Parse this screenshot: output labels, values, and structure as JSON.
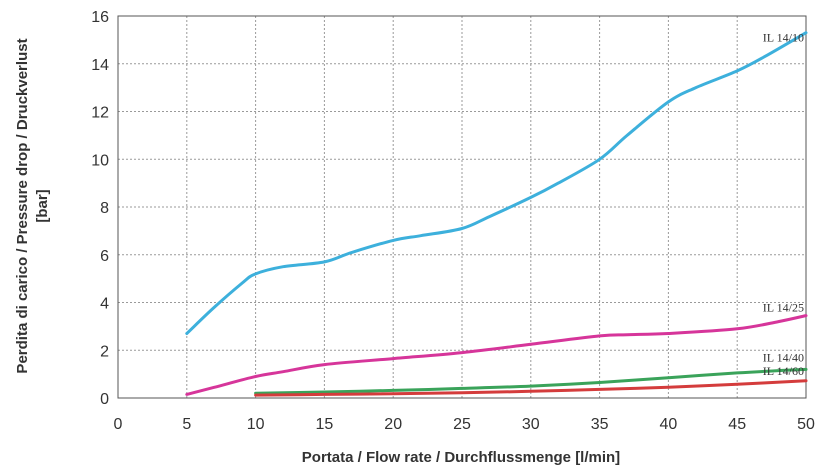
{
  "chart_data": {
    "type": "line",
    "title": "",
    "xlabel": "Portata / Flow rate /  Durchflussmenge [l/min]",
    "ylabel_line1": "Perdita di carico / Pressure drop / Druckverlust",
    "ylabel_line2": "[bar]",
    "xlim": [
      0,
      50
    ],
    "ylim": [
      0,
      16
    ],
    "x_ticks": [
      "0",
      "5",
      "10",
      "15",
      "20",
      "25",
      "30",
      "35",
      "40",
      "45",
      "50"
    ],
    "y_ticks": [
      "0",
      "2",
      "4",
      "6",
      "8",
      "10",
      "12",
      "14",
      "16"
    ],
    "grid": true,
    "series": [
      {
        "name": "IL 14/10",
        "color": "#3db0dc",
        "x": [
          5,
          7,
          9,
          10,
          12,
          15,
          17,
          20,
          22,
          25,
          27,
          30,
          32,
          35,
          37,
          40,
          42,
          45,
          47,
          50
        ],
        "y": [
          2.7,
          3.8,
          4.8,
          5.2,
          5.5,
          5.7,
          6.1,
          6.6,
          6.8,
          7.1,
          7.6,
          8.4,
          9.0,
          10.0,
          11.0,
          12.4,
          13.0,
          13.7,
          14.3,
          15.3
        ]
      },
      {
        "name": "IL 14/25",
        "color": "#d6359a",
        "x": [
          5,
          7,
          10,
          12,
          15,
          20,
          25,
          30,
          35,
          37,
          40,
          45,
          48,
          50
        ],
        "y": [
          0.15,
          0.45,
          0.9,
          1.1,
          1.4,
          1.65,
          1.9,
          2.25,
          2.6,
          2.65,
          2.7,
          2.9,
          3.2,
          3.45
        ]
      },
      {
        "name": "IL 14/40",
        "color": "#3aa35a",
        "x": [
          10,
          15,
          20,
          25,
          30,
          35,
          40,
          45,
          50
        ],
        "y": [
          0.2,
          0.25,
          0.32,
          0.4,
          0.5,
          0.65,
          0.85,
          1.05,
          1.2
        ]
      },
      {
        "name": "IL 14/60",
        "color": "#d43c3c",
        "x": [
          10,
          15,
          20,
          25,
          30,
          35,
          40,
          45,
          50
        ],
        "y": [
          0.12,
          0.15,
          0.18,
          0.22,
          0.28,
          0.36,
          0.45,
          0.58,
          0.72
        ]
      }
    ]
  }
}
